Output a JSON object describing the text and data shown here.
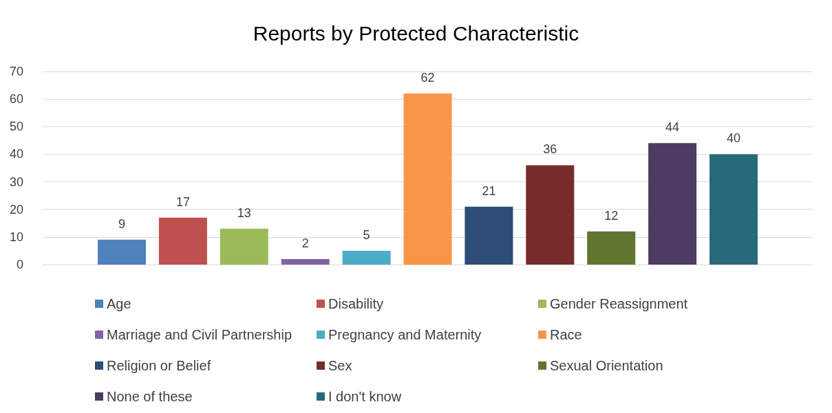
{
  "chart_data": {
    "type": "bar",
    "title": "Reports by Protected Characteristic",
    "categories": [
      null
    ],
    "series": [
      {
        "name": "Age",
        "color": "#4f81bd",
        "values": [
          9
        ]
      },
      {
        "name": "Disability",
        "color": "#c0504d",
        "values": [
          17
        ]
      },
      {
        "name": "Gender Reassignment",
        "color": "#9bbb59",
        "values": [
          13
        ]
      },
      {
        "name": "Marriage and Civil Partnership",
        "color": "#8064a2",
        "values": [
          2
        ]
      },
      {
        "name": "Pregnancy and Maternity",
        "color": "#4bacc6",
        "values": [
          5
        ]
      },
      {
        "name": "Race",
        "color": "#f79646",
        "values": [
          62
        ]
      },
      {
        "name": "Religion or Belief",
        "color": "#2c4d75",
        "values": [
          21
        ]
      },
      {
        "name": "Sex",
        "color": "#772c2a",
        "values": [
          36
        ]
      },
      {
        "name": "Sexual Orientation",
        "color": "#5f7530",
        "values": [
          12
        ]
      },
      {
        "name": "None of these",
        "color": "#4d3b62",
        "values": [
          44
        ]
      },
      {
        "name": "I don't know",
        "color": "#276a7c",
        "values": [
          40
        ]
      }
    ],
    "ylim": [
      0,
      70
    ],
    "yticks": [
      0,
      10,
      20,
      30,
      40,
      50,
      60,
      70
    ],
    "grid": "y",
    "legend": "bottom",
    "data_labels": true
  }
}
